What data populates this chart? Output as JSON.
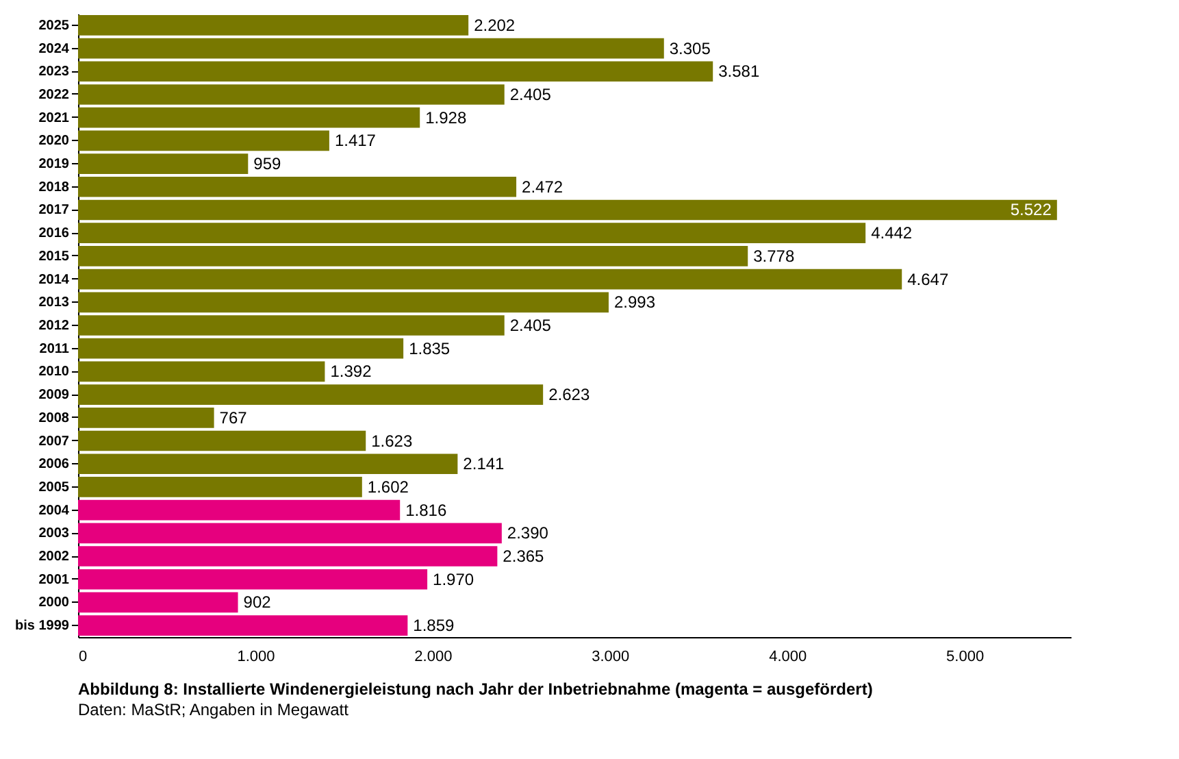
{
  "chart_data": {
    "type": "bar",
    "orientation": "horizontal",
    "title": "Abbildung 8: Installierte Windenergieleistung nach Jahr der Inbetriebnahme (magenta = ausgefördert)",
    "annotations": [
      "Daten: MaStR; Angaben in Megawatt"
    ],
    "categories": [
      "2025",
      "2024",
      "2023",
      "2022",
      "2021",
      "2020",
      "2019",
      "2018",
      "2017",
      "2016",
      "2015",
      "2014",
      "2013",
      "2012",
      "2011",
      "2010",
      "2009",
      "2008",
      "2007",
      "2006",
      "2005",
      "2004",
      "2003",
      "2002",
      "2001",
      "2000",
      "bis 1999"
    ],
    "values": [
      2202,
      3305,
      3581,
      2405,
      1928,
      1417,
      959,
      2472,
      5522,
      4442,
      3778,
      4647,
      2993,
      2405,
      1835,
      1392,
      2623,
      767,
      1623,
      2141,
      1602,
      1816,
      2390,
      2365,
      1970,
      902,
      1859
    ],
    "value_labels": [
      "2.202",
      "3.305",
      "3.581",
      "2.405",
      "1.928",
      "1.417",
      "959",
      "2.472",
      "5.522",
      "4.442",
      "3.778",
      "4.647",
      "2.993",
      "2.405",
      "1.835",
      "1.392",
      "2.623",
      "767",
      "1.623",
      "2.141",
      "1.602",
      "1.816",
      "2.390",
      "2.365",
      "1.970",
      "902",
      "1.859"
    ],
    "colors": [
      "#787800",
      "#787800",
      "#787800",
      "#787800",
      "#787800",
      "#787800",
      "#787800",
      "#787800",
      "#787800",
      "#787800",
      "#787800",
      "#787800",
      "#787800",
      "#787800",
      "#787800",
      "#787800",
      "#787800",
      "#787800",
      "#787800",
      "#787800",
      "#787800",
      "#e6007e",
      "#e6007e",
      "#e6007e",
      "#e6007e",
      "#e6007e",
      "#e6007e"
    ],
    "xlim": [
      0,
      5600
    ],
    "xticks": [
      0,
      {
        "value": 1000,
        "label": "1.000"
      },
      {
        "value": 2000,
        "label": "2.000"
      },
      {
        "value": 3000,
        "label": "3.000"
      },
      {
        "value": 4000,
        "label": "4.000"
      },
      {
        "value": 5000,
        "label": "5.000"
      }
    ],
    "grid": false
  }
}
